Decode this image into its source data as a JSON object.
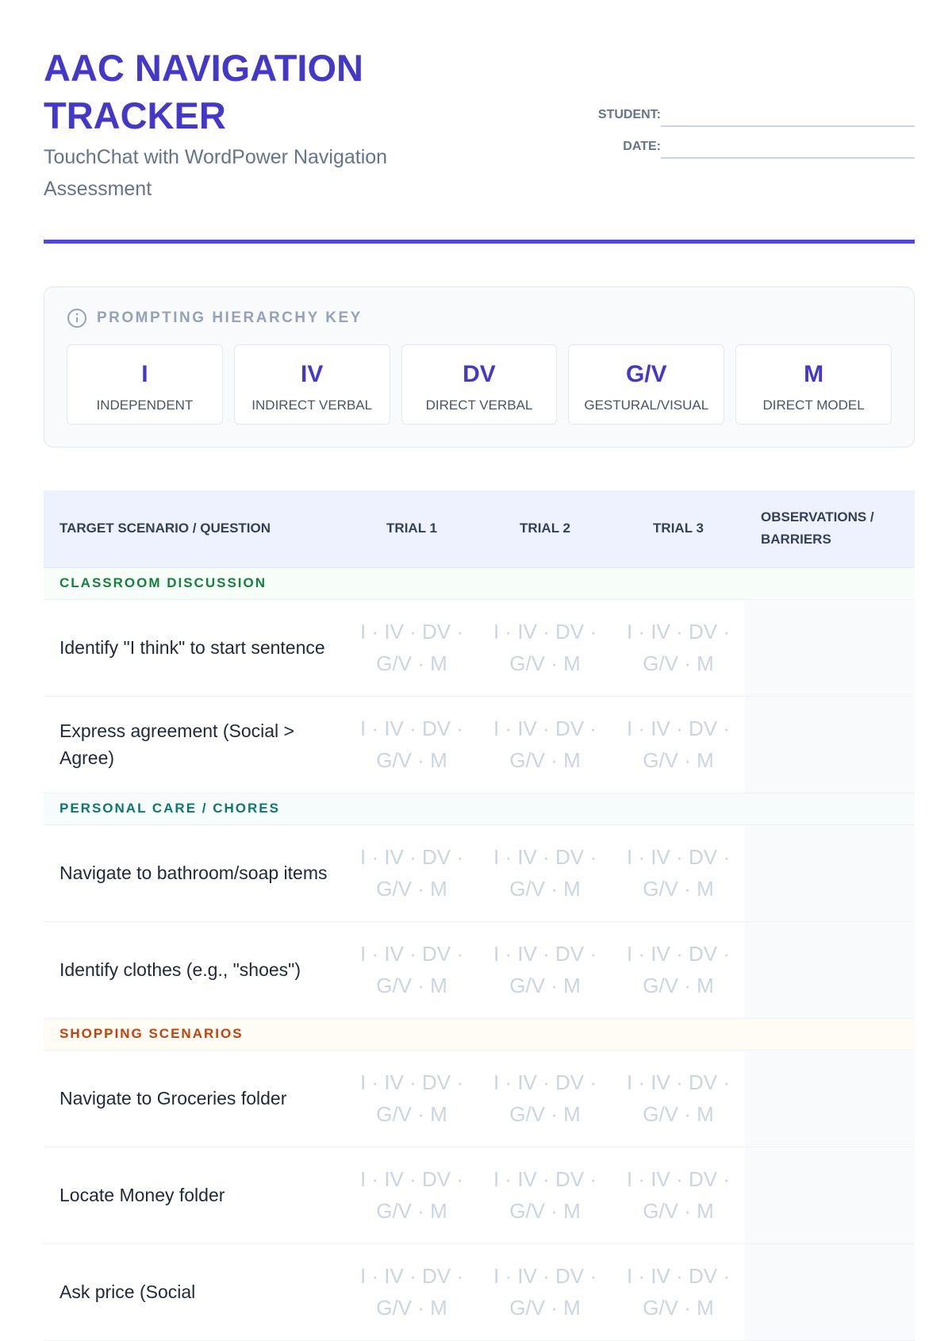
{
  "header": {
    "title": "AAC NAVIGATION TRACKER",
    "subtitle": "TouchChat with WordPower Navigation Assessment",
    "fields": [
      "STUDENT:",
      "DATE:"
    ]
  },
  "key": {
    "title": "PROMPTING HIERARCHY KEY",
    "items": [
      {
        "code": "I",
        "label": "INDEPENDENT"
      },
      {
        "code": "IV",
        "label": "INDIRECT VERBAL"
      },
      {
        "code": "DV",
        "label": "DIRECT VERBAL"
      },
      {
        "code": "G/V",
        "label": "GESTURAL/VISUAL"
      },
      {
        "code": "M",
        "label": "DIRECT MODEL"
      }
    ]
  },
  "table": {
    "headers": [
      "TARGET SCENARIO / QUESTION",
      "TRIAL 1",
      "TRIAL 2",
      "TRIAL 3",
      "OBSERVATIONS / BARRIERS"
    ],
    "trial_options": "I · IV · DV · G/V · M",
    "sections": [
      {
        "name": "CLASSROOM DISCUSSION",
        "rows": [
          "Identify \"I think\" to start sentence",
          "Express agreement (Social > Agree)"
        ]
      },
      {
        "name": "PERSONAL CARE / CHORES",
        "rows": [
          "Navigate to bathroom/soap items",
          "Identify clothes (e.g., \"shoes\")"
        ]
      },
      {
        "name": "SHOPPING SCENARIOS",
        "rows": [
          "Navigate to Groceries folder",
          "Locate Money folder",
          "Ask price (Social"
        ]
      }
    ]
  }
}
